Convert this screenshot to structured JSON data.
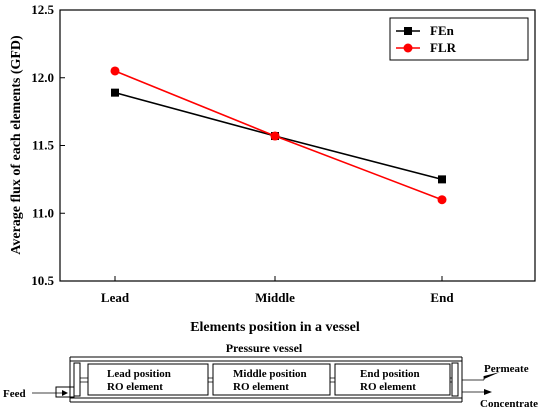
{
  "chart_data": {
    "type": "line",
    "title": "",
    "xlabel": "Elements position in a vessel",
    "ylabel": "Average flux of each elements (GFD)",
    "categories": [
      "Lead",
      "Middle",
      "End"
    ],
    "ylim": [
      10.5,
      12.5
    ],
    "yticks": [
      "10.5",
      "11.0",
      "11.5",
      "12.0",
      "12.5"
    ],
    "series": [
      {
        "name": "FEn",
        "values": [
          11.89,
          11.57,
          11.25
        ],
        "color": "#000000",
        "marker": "square"
      },
      {
        "name": "FLR",
        "values": [
          12.05,
          11.57,
          11.1
        ],
        "color": "#ff0000",
        "marker": "circle"
      }
    ],
    "legend_position": "top-right",
    "grid": false
  },
  "diagram": {
    "vessel_label": "Pressure vessel",
    "feed_label": "Feed",
    "permeate_label": "Permeate",
    "concentrate_label": "Concentrate",
    "elements": [
      {
        "line1": "Lead position",
        "line2": "RO element"
      },
      {
        "line1": "Middle position",
        "line2": "RO element"
      },
      {
        "line1": "End position",
        "line2": "RO element"
      }
    ]
  }
}
